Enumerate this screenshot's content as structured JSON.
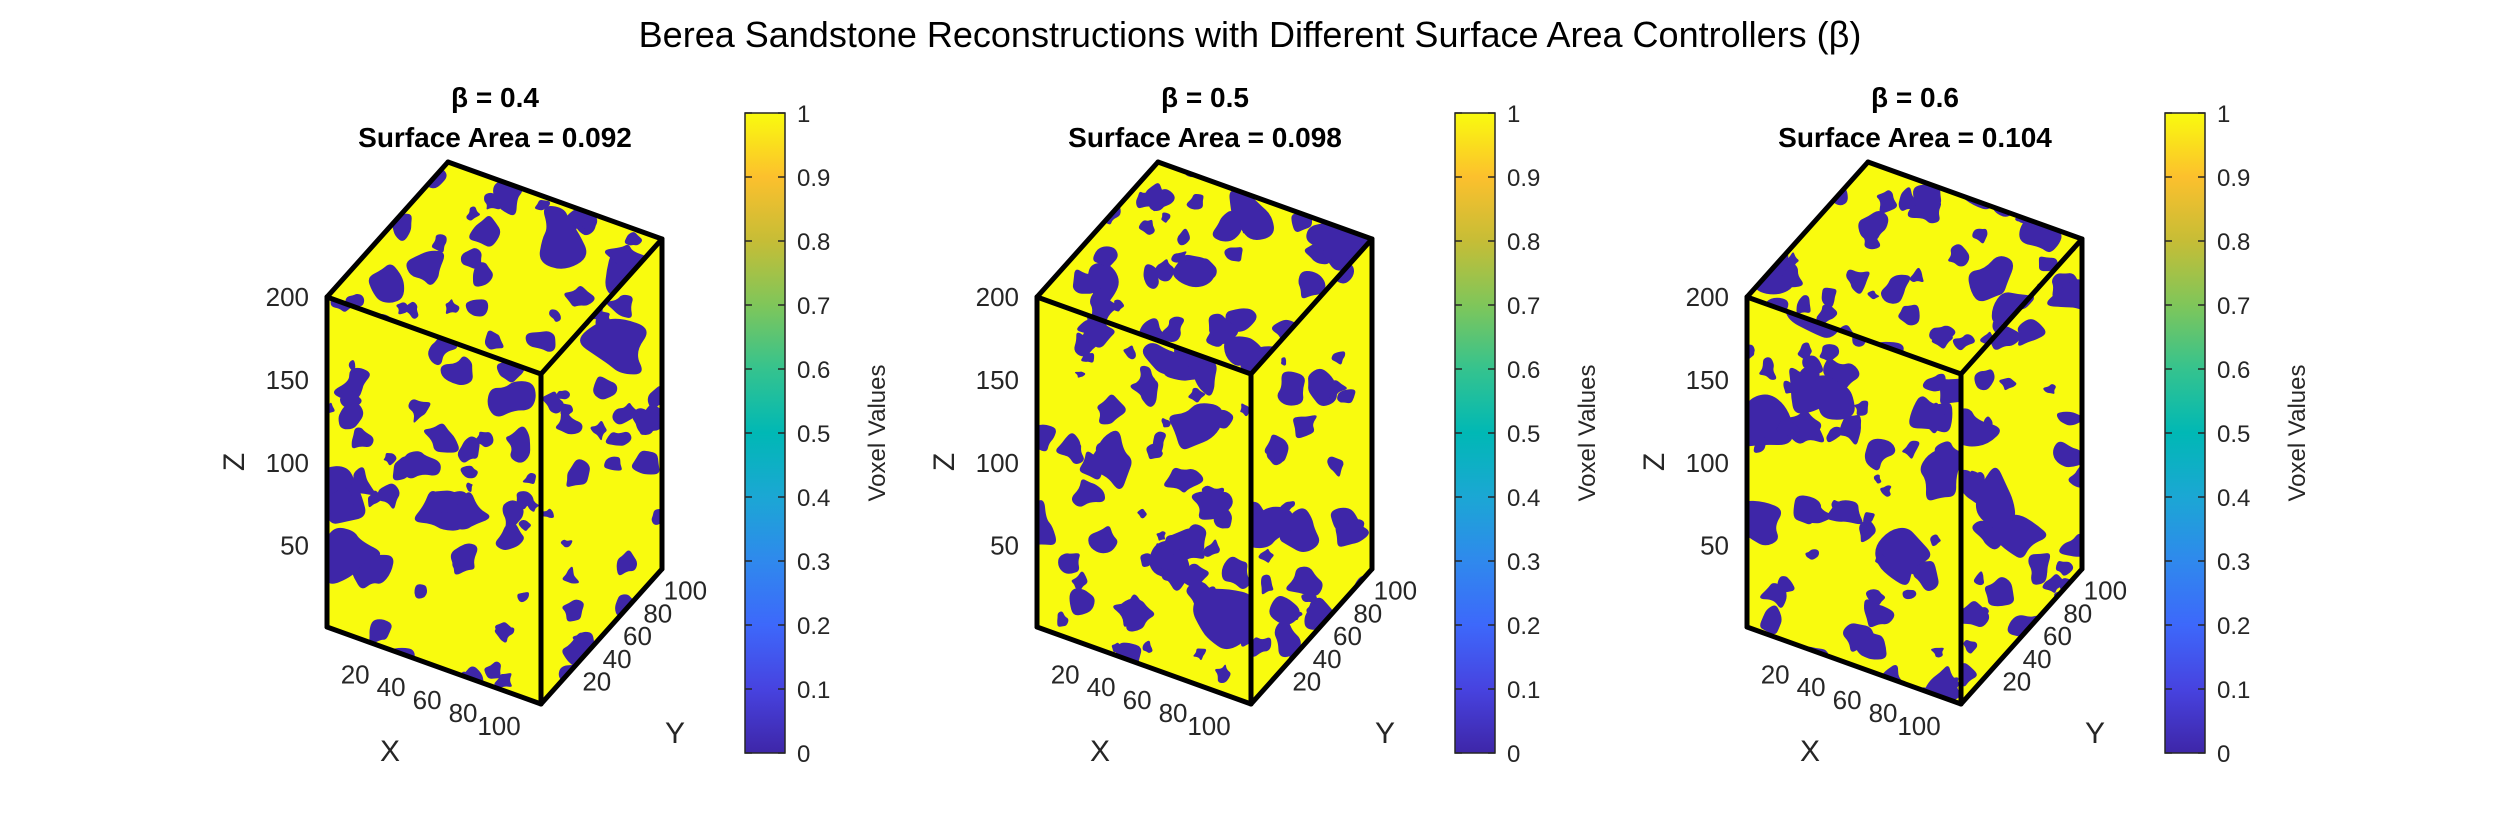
{
  "figure": {
    "title": "Berea Sandstone Reconstructions with Different Surface Area Controllers (β)"
  },
  "chart_data": [
    {
      "type": "volume-3d",
      "title_line1": "β = 0.4",
      "title_line2": "Surface Area = 0.092",
      "beta": 0.4,
      "surface_area": 0.092,
      "xlabel": "X",
      "ylabel": "Y",
      "zlabel": "Z",
      "xticks": [
        "20",
        "40",
        "60",
        "80",
        "100"
      ],
      "yticks": [
        "20",
        "40",
        "60",
        "80",
        "100"
      ],
      "zticks": [
        "50",
        "100",
        "150",
        "200"
      ],
      "xlim": [
        1,
        120
      ],
      "ylim": [
        1,
        120
      ],
      "zlim": [
        1,
        200
      ],
      "colorbar": {
        "label": "Voxel Values",
        "ticks": [
          "0",
          "0.1",
          "0.2",
          "0.3",
          "0.4",
          "0.5",
          "0.6",
          "0.7",
          "0.8",
          "0.9",
          "1"
        ],
        "range": [
          0,
          1
        ],
        "colormap": "parula"
      },
      "phase_colors": {
        "pore": "#3e26a8",
        "grain": "#f9fb0e"
      }
    },
    {
      "type": "volume-3d",
      "title_line1": "β = 0.5",
      "title_line2": "Surface Area = 0.098",
      "beta": 0.5,
      "surface_area": 0.098,
      "xlabel": "X",
      "ylabel": "Y",
      "zlabel": "Z",
      "xticks": [
        "20",
        "40",
        "60",
        "80",
        "100"
      ],
      "yticks": [
        "20",
        "40",
        "60",
        "80",
        "100"
      ],
      "zticks": [
        "50",
        "100",
        "150",
        "200"
      ],
      "xlim": [
        1,
        120
      ],
      "ylim": [
        1,
        120
      ],
      "zlim": [
        1,
        200
      ],
      "colorbar": {
        "label": "Voxel Values",
        "ticks": [
          "0",
          "0.1",
          "0.2",
          "0.3",
          "0.4",
          "0.5",
          "0.6",
          "0.7",
          "0.8",
          "0.9",
          "1"
        ],
        "range": [
          0,
          1
        ],
        "colormap": "parula"
      },
      "phase_colors": {
        "pore": "#3e26a8",
        "grain": "#f9fb0e"
      }
    },
    {
      "type": "volume-3d",
      "title_line1": "β = 0.6",
      "title_line2": "Surface Area = 0.104",
      "beta": 0.6,
      "surface_area": 0.104,
      "xlabel": "X",
      "ylabel": "Y",
      "zlabel": "Z",
      "xticks": [
        "20",
        "40",
        "60",
        "80",
        "100"
      ],
      "yticks": [
        "20",
        "40",
        "60",
        "80",
        "100"
      ],
      "zticks": [
        "50",
        "100",
        "150",
        "200"
      ],
      "xlim": [
        1,
        120
      ],
      "ylim": [
        1,
        120
      ],
      "zlim": [
        1,
        200
      ],
      "colorbar": {
        "label": "Voxel Values",
        "ticks": [
          "0",
          "0.1",
          "0.2",
          "0.3",
          "0.4",
          "0.5",
          "0.6",
          "0.7",
          "0.8",
          "0.9",
          "1"
        ],
        "range": [
          0,
          1
        ],
        "colormap": "parula"
      },
      "phase_colors": {
        "pore": "#3e26a8",
        "grain": "#f9fb0e"
      }
    }
  ]
}
